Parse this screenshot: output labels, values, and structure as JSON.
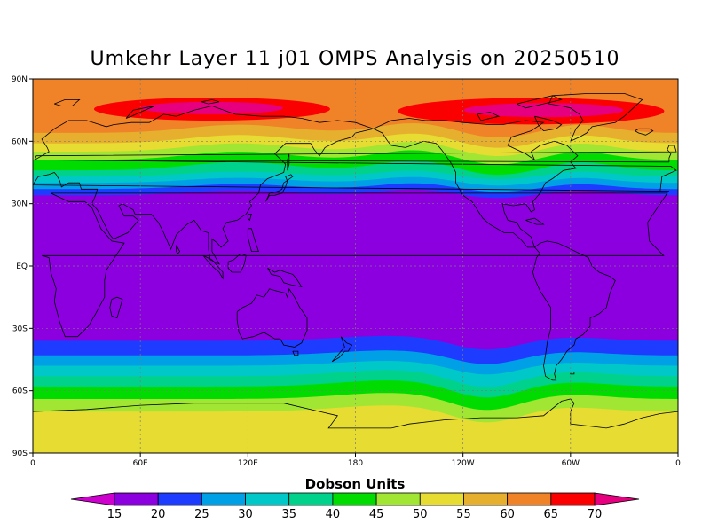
{
  "title": "Umkehr Layer 11 j01 OMPS Analysis on 20250510",
  "lat_labels": [
    "90N",
    "60N",
    "30N",
    "EQ",
    "30S",
    "60S",
    "90S"
  ],
  "lon_labels": [
    "0",
    "60E",
    "120E",
    "180",
    "120W",
    "60W",
    "0"
  ],
  "colorbar": {
    "title": "Dobson Units",
    "levels": [
      "15",
      "20",
      "25",
      "30",
      "35",
      "40",
      "45",
      "50",
      "55",
      "60",
      "65",
      "70"
    ],
    "colors": [
      "#ce00ce",
      "#8c00e0",
      "#1e3cff",
      "#00a0e6",
      "#00c8c8",
      "#00d28c",
      "#00dc00",
      "#a0e632",
      "#e6dc32",
      "#e6af2d",
      "#f08228",
      "#fa0000",
      "#e6007f"
    ]
  },
  "chart_data": {
    "type": "heatmap",
    "title": "Umkehr Layer 11 j01 OMPS Analysis on 20250510",
    "units": "Dobson Units",
    "projection": "cylindrical equidistant, 0 to 360 longitude",
    "lon_range": [
      0,
      360
    ],
    "lat_range": [
      -90,
      90
    ],
    "grid": true,
    "bands": [
      {
        "lat_range": [
          36,
          90
        ],
        "field": "increasing poleward, 40-45 DU near 40N to 65-70+ DU near 70-75N",
        "max": "70+ DU cores near 60-150E and 210-330E at 70-80N"
      },
      {
        "lat_range": [
          -33,
          33
        ],
        "value": "< 15 DU (minimum, purple)"
      },
      {
        "lat_range": [
          -70,
          -36
        ],
        "field": "increasing poleward, 15-20 DU near 40S to 40-45 DU near 65S"
      },
      {
        "lat_range": [
          -90,
          -70
        ],
        "value": "45-50 DU"
      }
    ]
  }
}
